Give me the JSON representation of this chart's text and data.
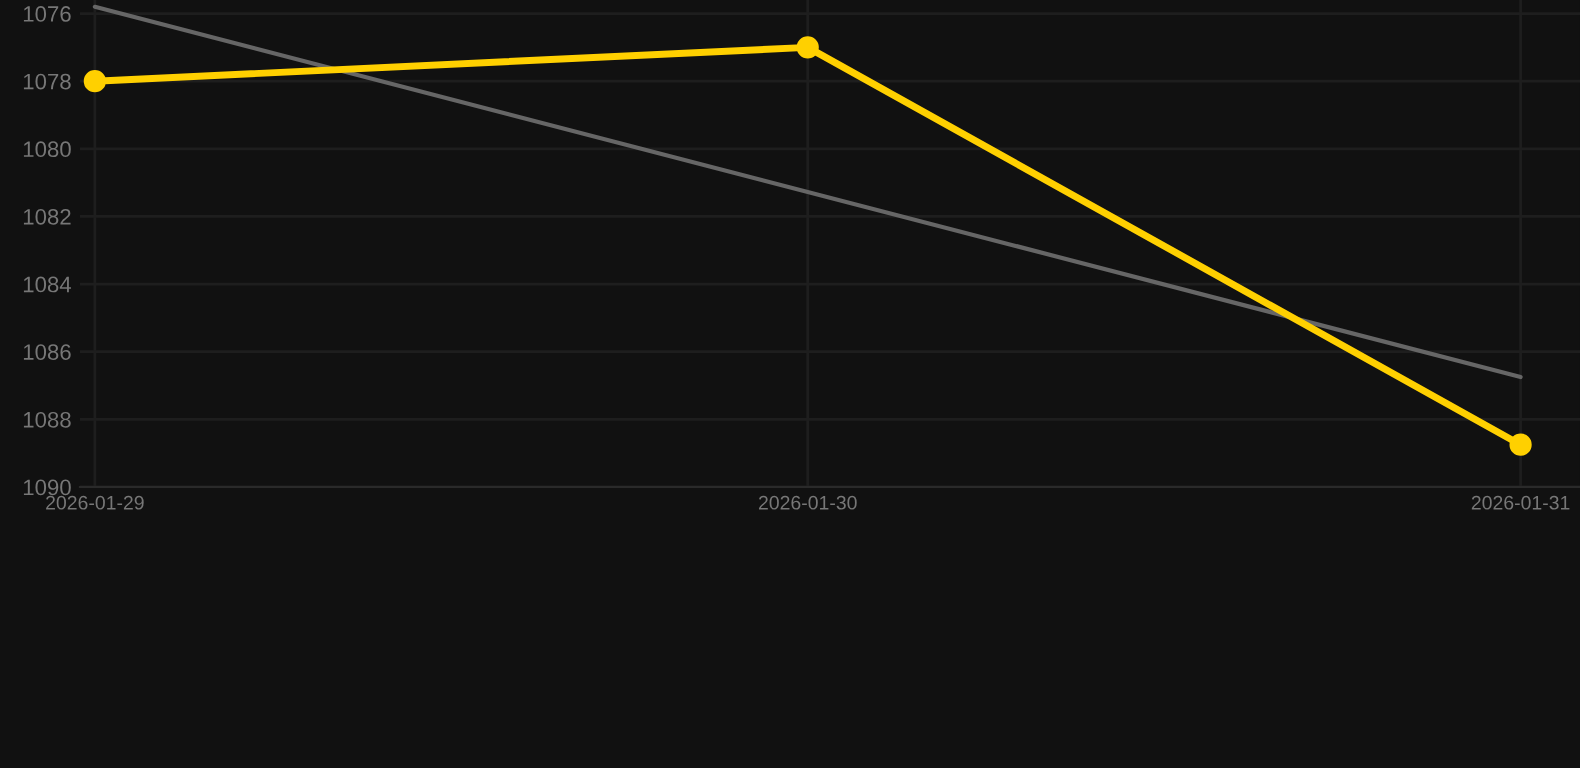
{
  "chart_data": {
    "type": "line",
    "x": [
      "2026-01-29",
      "2026-01-30",
      "2026-01-31"
    ],
    "series": [
      {
        "color": "#ffd000",
        "values": [
          1078,
          1077,
          1088.75
        ],
        "marker": "circle"
      },
      {
        "type": "line",
        "color": "#666666",
        "x": [
          "2026-01-29",
          "2026-01-31"
        ],
        "values": [
          1075.8,
          1086.75
        ],
        "marker": "none"
      }
    ],
    "xlim": [
      "2026-01-28T23:30",
      "2026-01-31T02:00"
    ],
    "xticks": [
      "2026-01-29",
      "2026-01-30",
      "2026-01-31"
    ],
    "ylim": [
      1090,
      1075.6
    ],
    "yticks": [
      1076,
      1078,
      1080,
      1082,
      1084,
      1086,
      1088,
      1090
    ],
    "grid": true,
    "line_style": "solid"
  }
}
